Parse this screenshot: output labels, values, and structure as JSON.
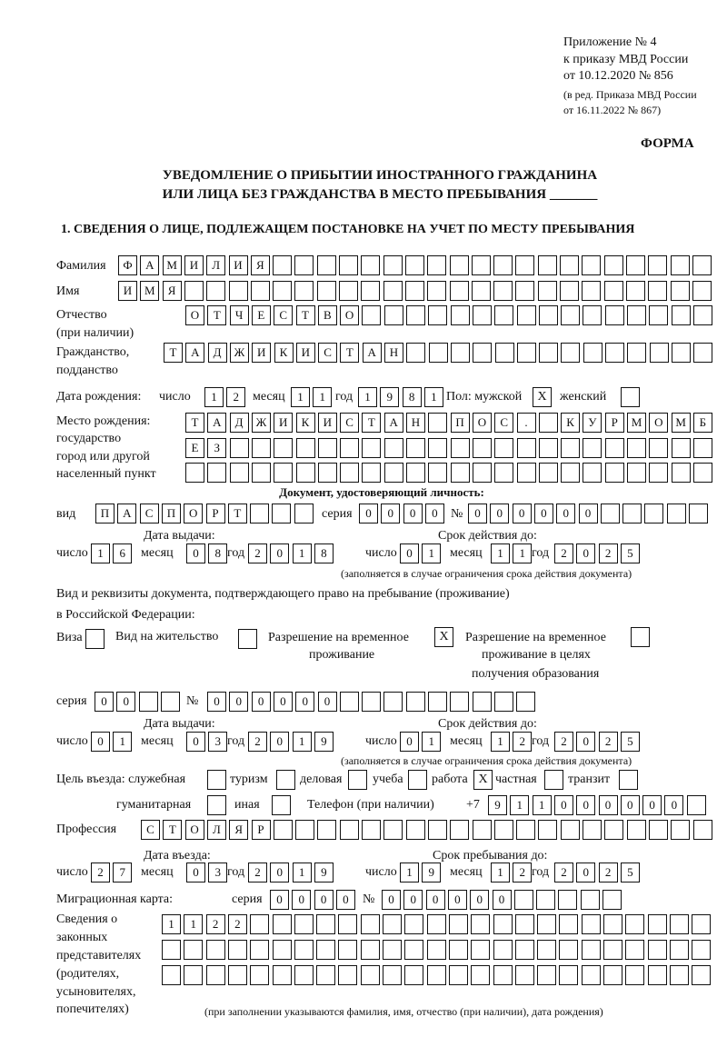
{
  "header": {
    "appendix": "Приложение № 4",
    "order": "к приказу МВД России",
    "order_date": "от 10.12.2020 № 856",
    "edition": "(в ред. Приказа МВД России",
    "edition_date": "от 16.11.2022 № 867)",
    "form_label": "ФОРМА",
    "title_line1": "УВЕДОМЛЕНИЕ О ПРИБЫТИИ ИНОСТРАННОГО ГРАЖДАНИНА",
    "title_line2": "ИЛИ ЛИЦА БЕЗ ГРАЖДАНСТВА В МЕСТО ПРЕБЫВАНИЯ _______"
  },
  "section1": {
    "heading": "1. СВЕДЕНИЯ О ЛИЦЕ, ПОДЛЕЖАЩЕМ ПОСТАНОВКЕ НА УЧЕТ ПО МЕСТУ ПРЕБЫВАНИЯ",
    "surname": {
      "label": "Фамилия",
      "value": "ФАМИЛИЯ"
    },
    "name": {
      "label": "Имя",
      "value": "ИМЯ"
    },
    "patronymic": {
      "label": "Отчество",
      "label2": "(при наличии)",
      "value": "ОТЧЕСТВО"
    },
    "citizenship": {
      "label": "Гражданство,",
      "label2": "подданство",
      "value": "ТАДЖИКИСТАН"
    },
    "birth": {
      "label": "Дата рождения:",
      "day_label": "число",
      "day": "12",
      "month_label": "месяц",
      "month": "11",
      "year_label": "год",
      "year": "1981"
    },
    "sex": {
      "label": "Пол: мужской",
      "male": "X",
      "female_label": "женский",
      "female": ""
    },
    "birthplace": {
      "label1": "Место рождения:",
      "label2": "государство",
      "label3": "город или другой",
      "label4": "населенный пункт",
      "row1": "ТАДЖИКИСТАН ПОС. КУРМОМБ",
      "row2": "ЕЗ",
      "row3": ""
    },
    "id_doc": {
      "heading": "Документ, удостоверяющий личность:",
      "type_label": "вид",
      "type": "ПАСПОРТ",
      "series_label": "серия",
      "series": "0000",
      "number_label": "№",
      "number": "000000",
      "issue_label": "Дата выдачи:",
      "issue": {
        "day": "16",
        "month": "08",
        "year": "2018"
      },
      "valid_label": "Срок действия до:",
      "valid": {
        "day": "01",
        "month": "11",
        "year": "2025"
      },
      "note": "(заполняется в случае ограничения срока действия документа)"
    },
    "stay_doc": {
      "label1": "Вид и реквизиты документа, подтверждающего право на пребывание (проживание)",
      "label2": "в Российской Федерации:",
      "visa_label": "Виза",
      "visa": "",
      "residence_label": "Вид на жительство",
      "residence": "",
      "temp_label1": "Разрешение на временное",
      "temp_label2": "проживание",
      "temp": "X",
      "edu_label1": "Разрешение на временное",
      "edu_label2": "проживание в целях",
      "edu_label3": "получения образования",
      "edu": "",
      "series_label": "серия",
      "series": "00",
      "number_label": "№",
      "number": "000000",
      "issue_label": "Дата выдачи:",
      "issue": {
        "day": "01",
        "month": "03",
        "year": "2019"
      },
      "valid_label": "Срок действия до:",
      "valid": {
        "day": "01",
        "month": "12",
        "year": "2025"
      },
      "note": "(заполняется в случае ограничения срока действия документа)"
    },
    "purpose": {
      "label": "Цель въезда: служебная",
      "service": "",
      "tourism_label": "туризм",
      "tourism": "",
      "business_label": "деловая",
      "business": "",
      "study_label": "учеба",
      "study": "",
      "work_label": "работа",
      "work": "X",
      "private_label": "частная",
      "private": "",
      "transit_label": "транзит",
      "transit": "",
      "humanitarian_label": "гуманитарная",
      "humanitarian": "",
      "other_label": "иная",
      "other": ""
    },
    "phone": {
      "label": "Телефон (при наличии)",
      "prefix": "+7",
      "value": "911000000"
    },
    "profession": {
      "label": "Профессия",
      "value": "СТОЛЯР"
    },
    "entry": {
      "label": "Дата въезда:",
      "day": "27",
      "month": "03",
      "year": "2019"
    },
    "stay_until": {
      "label": "Срок пребывания до:",
      "day": "19",
      "month": "12",
      "year": "2025"
    },
    "migration_card": {
      "label": "Миграционная карта:",
      "series_label": "серия",
      "series": "0000",
      "number_label": "№",
      "number": "000000"
    },
    "representatives": {
      "label1": "Сведения о",
      "label2": "законных",
      "label3": "представителях",
      "label4": "(родителях,",
      "label5": "усыновителях,",
      "label6": "попечителях)",
      "row1": "1122",
      "row2": "",
      "row3": "",
      "note": "(при заполнении указываются фамилия, имя, отчество (при наличии), дата рождения)"
    },
    "day_label": "число",
    "month_label": "месяц",
    "year_label": "год"
  }
}
